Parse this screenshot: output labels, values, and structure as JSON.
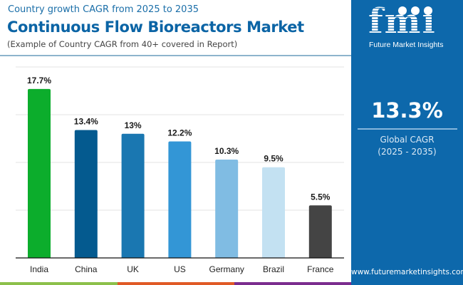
{
  "header": {
    "kicker": "Country growth CAGR from 2025 to 2035",
    "title": "Continuous Flow Bioreactors Market",
    "subtitle": "(Example of Country CAGR from 40+ covered in Report)"
  },
  "panel": {
    "logo_letters": "fmi",
    "logo_name": "Future Market Insights",
    "global_cagr": "13.3%",
    "global_label": "Global CAGR",
    "global_range": "(2025 - 2035)",
    "url": "www.futuremarketinsights.com",
    "background": "#0d68ab"
  },
  "stripe_colors": [
    "#8cc04a",
    "#e05a26",
    "#7b2d8e",
    "#0d68ab"
  ],
  "chart_data": {
    "type": "bar",
    "title": "Continuous Flow Bioreactors Market",
    "xlabel": "",
    "ylabel": "",
    "categories": [
      "India",
      "China",
      "UK",
      "US",
      "Germany",
      "Brazil",
      "France"
    ],
    "values": [
      17.7,
      13.4,
      13.0,
      12.2,
      10.3,
      9.5,
      5.5
    ],
    "data_labels": [
      "17.7%",
      "13.4%",
      "13%",
      "12.2%",
      "10.3%",
      "9.5%",
      "5.5%"
    ],
    "colors": [
      "#0cad2c",
      "#045a8f",
      "#1a77b1",
      "#3396d6",
      "#80bce3",
      "#c3e1f2",
      "#444444"
    ],
    "ylim": [
      0,
      20
    ],
    "gridlines": [
      5,
      10,
      15,
      20
    ],
    "grid": true,
    "y_tick_labels_visible": false,
    "legend": "none"
  }
}
